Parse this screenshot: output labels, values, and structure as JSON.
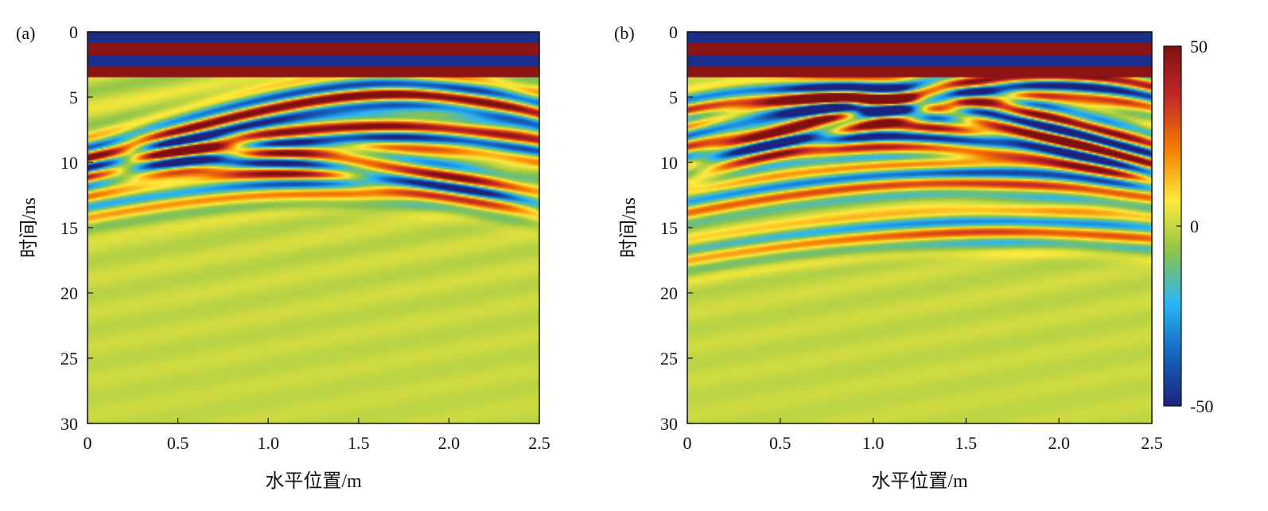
{
  "chart_data": [
    {
      "type": "heatmap",
      "panel_label": "(a)",
      "xlabel": "水平位置/m",
      "ylabel": "时间/ns",
      "xlim": [
        0,
        2.5
      ],
      "ylim": [
        0,
        30
      ],
      "y_inverted": true,
      "xticks": [
        0,
        0.5,
        1.0,
        1.5,
        2.0,
        2.5
      ],
      "xtick_labels": [
        "0",
        "0.5",
        "1.0",
        "1.5",
        "2.0",
        "2.5"
      ],
      "yticks": [
        0,
        5,
        10,
        15,
        20,
        25,
        30
      ],
      "ytick_labels": [
        "0",
        "5",
        "10",
        "15",
        "20",
        "25",
        "30"
      ],
      "direct_wave_bands_ns": [
        0,
        3.5
      ],
      "hyperbola_apexes": [
        {
          "x": 1.7,
          "t": 4.8,
          "strength": 1.0
        },
        {
          "x": 1.65,
          "t": 7.5,
          "strength": 0.9
        },
        {
          "x": 0.7,
          "t": 9.6,
          "strength": 0.85
        },
        {
          "x": 1.4,
          "t": 11.5,
          "strength": 0.6
        }
      ],
      "colorbar": null
    },
    {
      "type": "heatmap",
      "panel_label": "(b)",
      "xlabel": "水平位置/m",
      "ylabel": "时间/ns",
      "xlim": [
        0,
        2.5
      ],
      "ylim": [
        0,
        30
      ],
      "y_inverted": true,
      "xticks": [
        0,
        0.5,
        1.0,
        1.5,
        2.0,
        2.5
      ],
      "xtick_labels": [
        "0",
        "0.5",
        "1.0",
        "1.5",
        "2.0",
        "2.5"
      ],
      "yticks": [
        0,
        5,
        10,
        15,
        20,
        25,
        30
      ],
      "ytick_labels": [
        "0",
        "5",
        "10",
        "15",
        "20",
        "25",
        "30"
      ],
      "direct_wave_bands_ns": [
        0,
        3.5
      ],
      "hyperbola_apexes": [
        {
          "x": 0.7,
          "t": 5.0,
          "strength": 1.0
        },
        {
          "x": 1.05,
          "t": 5.2,
          "strength": 1.0
        },
        {
          "x": 1.95,
          "t": 3.8,
          "strength": 1.0
        },
        {
          "x": 1.1,
          "t": 8.0,
          "strength": 0.9
        },
        {
          "x": 1.5,
          "t": 11.0,
          "strength": 0.7
        },
        {
          "x": 1.7,
          "t": 15.0,
          "strength": 0.55
        }
      ],
      "colorbar": {
        "min": -50,
        "max": 50,
        "ticks": [
          50,
          0,
          -50
        ],
        "tick_labels": [
          "50",
          "0",
          "-50"
        ],
        "colormap": "jet",
        "colors": [
          "#1a237e",
          "#1565c0",
          "#29b6f6",
          "#8bc34a",
          "#ffeb3b",
          "#f57c00",
          "#c62828",
          "#7f1010"
        ]
      }
    }
  ]
}
